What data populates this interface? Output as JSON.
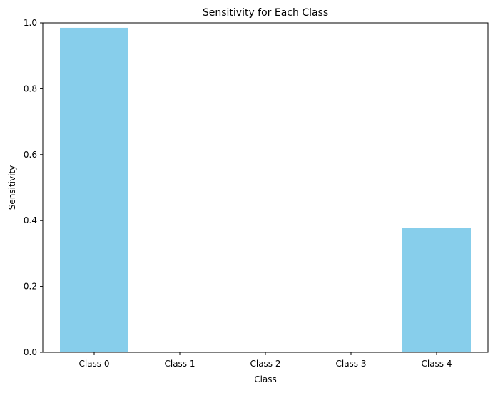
{
  "chart_data": {
    "type": "bar",
    "title": "Sensitivity for Each Class",
    "xlabel": "Class",
    "ylabel": "Sensitivity",
    "categories": [
      "Class 0",
      "Class 1",
      "Class 2",
      "Class 3",
      "Class 4"
    ],
    "values": [
      0.985,
      0.0,
      0.0,
      0.0,
      0.378
    ],
    "ylim": [
      0,
      1.0
    ],
    "yticks": [
      "0.0",
      "0.2",
      "0.4",
      "0.6",
      "0.8",
      "1.0"
    ],
    "grid": false,
    "bar_color": "#87CEEB"
  }
}
